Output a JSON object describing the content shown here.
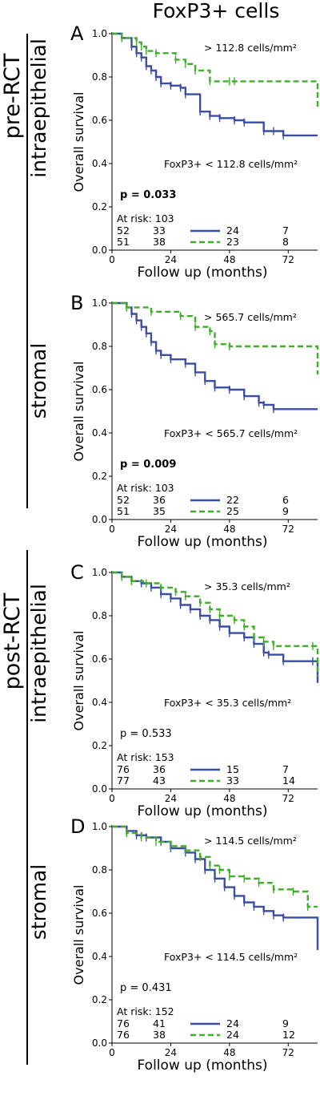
{
  "figure_title": "FoxP3+ cells",
  "groups": [
    {
      "label": "pre-RCT"
    },
    {
      "label": "post-RCT"
    }
  ],
  "colors": {
    "low": "#3a4fa3",
    "high": "#3fae2a"
  },
  "chart_data": [
    {
      "type": "line",
      "panel": "A",
      "compartment": "intraepithelial",
      "xlabel": "Follow up (months)",
      "ylabel": "Overall survival",
      "xlim": [
        0,
        84
      ],
      "ylim": [
        0,
        1.0
      ],
      "xticks": [
        0,
        24,
        48,
        72
      ],
      "yticks": [
        0,
        0.2,
        0.4,
        0.6,
        0.8,
        1.0
      ],
      "high_label": "> 112.8 cells/mm²",
      "low_label": "FoxP3+ < 112.8 cells/mm²",
      "p_value": "p = 0.033",
      "p_bold": true,
      "at_risk": {
        "header": "At risk: 103",
        "low": [
          "52",
          "33",
          "24",
          "7"
        ],
        "high": [
          "51",
          "38",
          "23",
          "8"
        ]
      },
      "series": [
        {
          "id": "low",
          "style": "solid",
          "x": [
            0,
            4,
            8,
            10,
            12,
            14,
            16,
            18,
            20,
            24,
            28,
            30,
            36,
            40,
            44,
            50,
            54,
            62,
            66,
            70,
            84
          ],
          "y": [
            1.0,
            0.98,
            0.94,
            0.91,
            0.89,
            0.85,
            0.83,
            0.8,
            0.77,
            0.76,
            0.75,
            0.72,
            0.64,
            0.62,
            0.61,
            0.6,
            0.59,
            0.55,
            0.55,
            0.53,
            0.53
          ]
        },
        {
          "id": "high",
          "style": "dashed",
          "x": [
            0,
            4,
            10,
            12,
            14,
            18,
            26,
            30,
            34,
            40,
            48,
            50,
            84
          ],
          "y": [
            1.0,
            0.98,
            0.96,
            0.94,
            0.92,
            0.91,
            0.88,
            0.86,
            0.83,
            0.78,
            0.78,
            0.78,
            0.66
          ]
        }
      ]
    },
    {
      "type": "line",
      "panel": "B",
      "compartment": "stromal",
      "xlabel": "Follow up (months)",
      "ylabel": "Overall survival",
      "xlim": [
        0,
        84
      ],
      "ylim": [
        0,
        1.0
      ],
      "xticks": [
        0,
        24,
        48,
        72
      ],
      "yticks": [
        0,
        0.2,
        0.4,
        0.6,
        0.8,
        1.0
      ],
      "high_label": "> 565.7 cells/mm²",
      "low_label": "FoxP3+ < 565.7 cells/mm²",
      "p_value": "p = 0.009",
      "p_bold": true,
      "at_risk": {
        "header": "At risk: 103",
        "low": [
          "52",
          "36",
          "22",
          "6"
        ],
        "high": [
          "51",
          "35",
          "25",
          "9"
        ]
      },
      "series": [
        {
          "id": "low",
          "style": "solid",
          "x": [
            0,
            6,
            8,
            10,
            12,
            14,
            16,
            18,
            20,
            24,
            30,
            34,
            38,
            42,
            48,
            54,
            60,
            62,
            66,
            84
          ],
          "y": [
            1.0,
            0.98,
            0.95,
            0.92,
            0.89,
            0.86,
            0.82,
            0.78,
            0.76,
            0.74,
            0.72,
            0.68,
            0.64,
            0.61,
            0.6,
            0.57,
            0.54,
            0.53,
            0.51,
            0.51
          ]
        },
        {
          "id": "high",
          "style": "dashed",
          "x": [
            0,
            6,
            16,
            28,
            34,
            40,
            42,
            48,
            84
          ],
          "y": [
            1.0,
            0.98,
            0.96,
            0.94,
            0.89,
            0.87,
            0.81,
            0.8,
            0.67
          ]
        }
      ]
    },
    {
      "type": "line",
      "panel": "C",
      "compartment": "intraepithelial",
      "xlabel": "Follow up (months)",
      "ylabel": "Overall survival",
      "xlim": [
        0,
        84
      ],
      "ylim": [
        0,
        1.0
      ],
      "xticks": [
        0,
        24,
        48,
        72
      ],
      "yticks": [
        0,
        0.2,
        0.4,
        0.6,
        0.8,
        1.0
      ],
      "high_label": "> 35.3 cells/mm²",
      "low_label": "FoxP3+ < 35.3 cells/mm²",
      "p_value": "p = 0.533",
      "p_bold": false,
      "at_risk": {
        "header": "At risk: 153",
        "low": [
          "76",
          "36",
          "15",
          "7"
        ],
        "high": [
          "77",
          "43",
          "33",
          "14"
        ]
      },
      "series": [
        {
          "id": "low",
          "style": "solid",
          "x": [
            0,
            4,
            8,
            12,
            16,
            20,
            24,
            28,
            32,
            36,
            40,
            44,
            48,
            54,
            58,
            62,
            64,
            70,
            82,
            84
          ],
          "y": [
            1.0,
            0.98,
            0.96,
            0.95,
            0.93,
            0.9,
            0.88,
            0.85,
            0.83,
            0.8,
            0.78,
            0.75,
            0.72,
            0.7,
            0.67,
            0.63,
            0.62,
            0.59,
            0.59,
            0.49
          ]
        },
        {
          "id": "high",
          "style": "dashed",
          "x": [
            0,
            4,
            8,
            14,
            20,
            26,
            30,
            36,
            40,
            44,
            50,
            54,
            58,
            62,
            66,
            82,
            84
          ],
          "y": [
            1.0,
            0.98,
            0.96,
            0.95,
            0.93,
            0.91,
            0.89,
            0.86,
            0.83,
            0.8,
            0.78,
            0.75,
            0.7,
            0.68,
            0.66,
            0.66,
            0.52
          ]
        }
      ]
    },
    {
      "type": "line",
      "panel": "D",
      "compartment": "stromal",
      "xlabel": "Follow up (months)",
      "ylabel": "Overall survival",
      "xlim": [
        0,
        84
      ],
      "ylim": [
        0,
        1.0
      ],
      "xticks": [
        0,
        24,
        48,
        72
      ],
      "yticks": [
        0,
        0.2,
        0.4,
        0.6,
        0.8,
        1.0
      ],
      "high_label": "> 114.5 cells/mm²",
      "low_label": "FoxP3+ < 114.5 cells/mm²",
      "p_value": "p = 0.431",
      "p_bold": false,
      "at_risk": {
        "header": "At risk: 152",
        "low": [
          "76",
          "41",
          "24",
          "9"
        ],
        "high": [
          "76",
          "38",
          "24",
          "12"
        ]
      },
      "series": [
        {
          "id": "low",
          "style": "solid",
          "x": [
            0,
            6,
            10,
            14,
            20,
            24,
            30,
            34,
            38,
            42,
            46,
            50,
            54,
            58,
            62,
            66,
            70,
            84
          ],
          "y": [
            1.0,
            0.98,
            0.96,
            0.95,
            0.93,
            0.9,
            0.88,
            0.85,
            0.8,
            0.76,
            0.72,
            0.68,
            0.65,
            0.63,
            0.61,
            0.59,
            0.58,
            0.43
          ]
        },
        {
          "id": "high",
          "style": "dashed",
          "x": [
            0,
            6,
            12,
            18,
            24,
            30,
            36,
            40,
            44,
            48,
            54,
            60,
            66,
            74,
            80,
            84
          ],
          "y": [
            1.0,
            0.97,
            0.95,
            0.93,
            0.91,
            0.89,
            0.86,
            0.82,
            0.8,
            0.77,
            0.76,
            0.74,
            0.71,
            0.7,
            0.63,
            0.63
          ]
        }
      ]
    }
  ]
}
